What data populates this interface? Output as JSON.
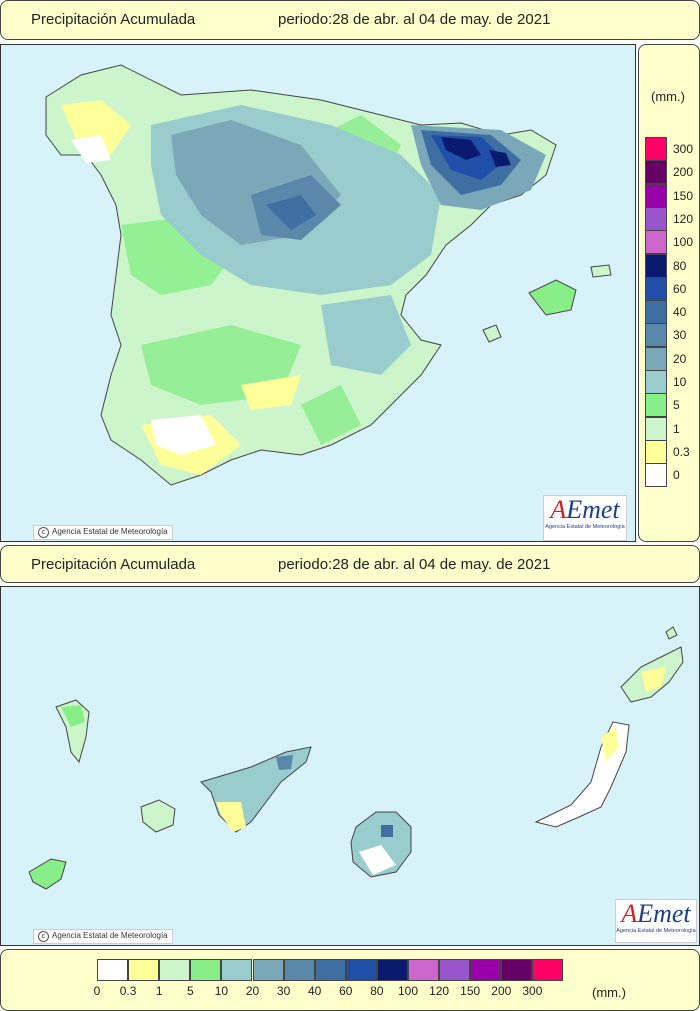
{
  "top_header": {
    "title": "Precipitación Acumulada",
    "period": "periodo:28 de abr. al 04 de may. de 2021"
  },
  "bottom_header": {
    "title": "Precipitación Acumulada",
    "period": "periodo:28 de abr. al 04 de may. de 2021"
  },
  "credit": "Agencia Estatal de Meteorología",
  "logo": {
    "brand_a": "A",
    "brand_e": "E",
    "brand_rest": "met",
    "subtitle": "Agencia Estatal de Meteorología"
  },
  "unit": "(mm.)",
  "legend": [
    {
      "label": "0",
      "color": "#ffffff"
    },
    {
      "label": "0.3",
      "color": "#ffff99"
    },
    {
      "label": "1",
      "color": "#ccf5cc"
    },
    {
      "label": "5",
      "color": "#88ee88"
    },
    {
      "label": "10",
      "color": "#99cccc"
    },
    {
      "label": "20",
      "color": "#7aa8b8"
    },
    {
      "label": "30",
      "color": "#5a88aa"
    },
    {
      "label": "40",
      "color": "#3f6ea3"
    },
    {
      "label": "60",
      "color": "#1f4fa8"
    },
    {
      "label": "80",
      "color": "#0a1a6e"
    },
    {
      "label": "100",
      "color": "#cc66cc"
    },
    {
      "label": "120",
      "color": "#9955cc"
    },
    {
      "label": "150",
      "color": "#9900aa"
    },
    {
      "label": "200",
      "color": "#660066"
    },
    {
      "label": "300",
      "color": "#ff0066"
    }
  ]
}
